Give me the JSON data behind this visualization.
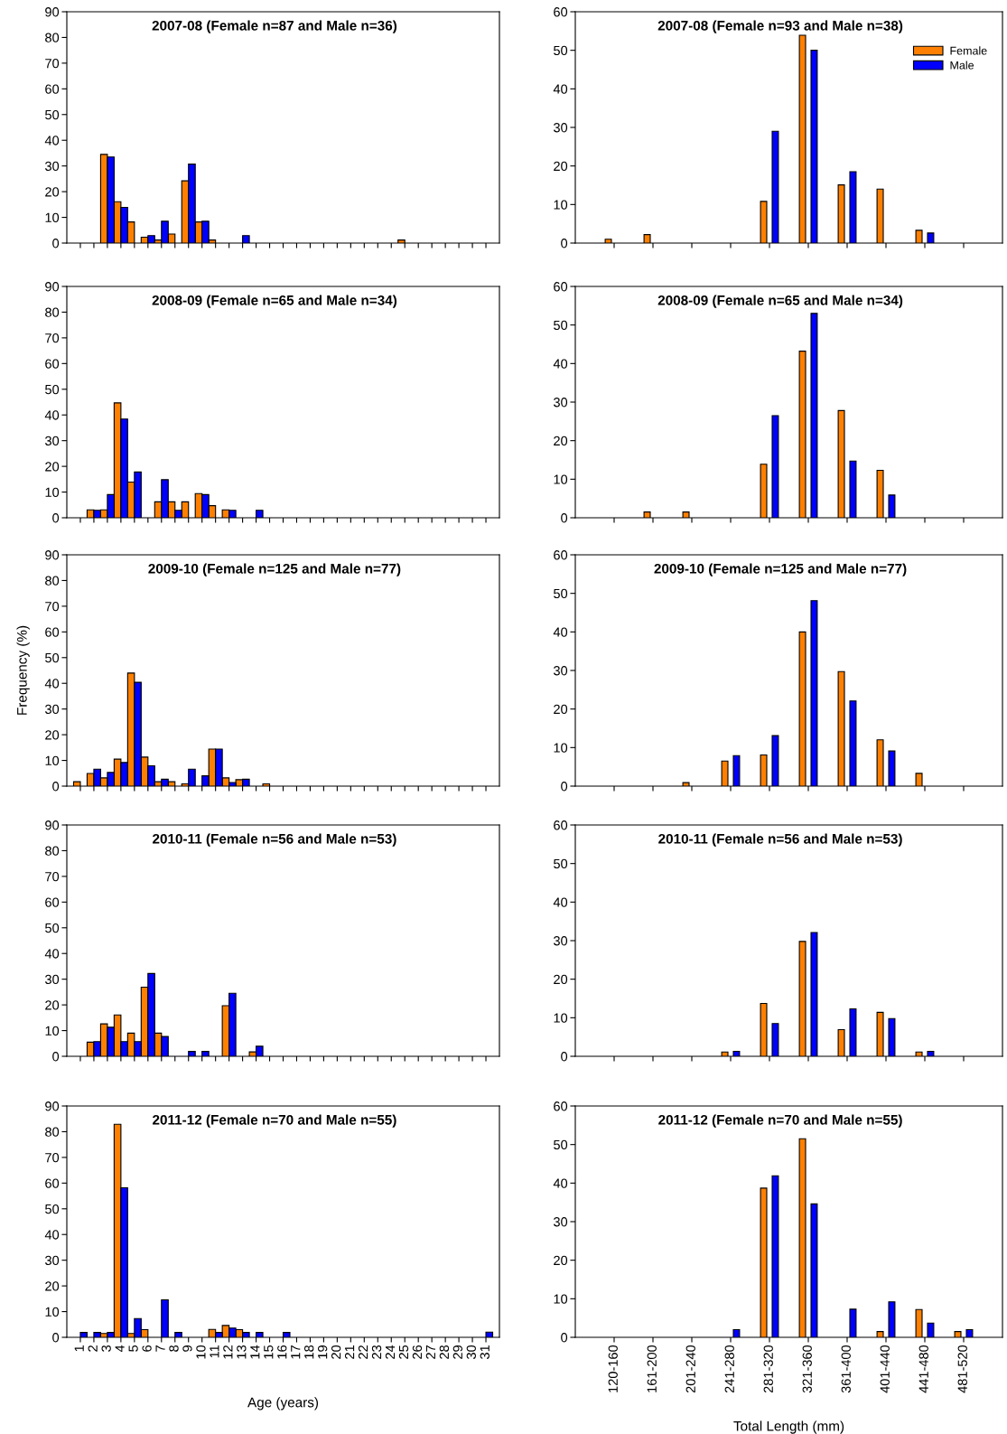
{
  "chart_data": [
    {
      "type": "bar",
      "title": "2007-08 (Female n=87 and Male n=36)",
      "x": [
        1,
        2,
        3,
        4,
        5,
        6,
        7,
        8,
        9,
        10,
        11,
        12,
        13,
        14,
        15,
        16,
        17,
        18,
        19,
        20,
        21,
        22,
        23,
        24,
        25,
        26,
        27,
        28,
        29,
        30,
        31
      ],
      "series": [
        {
          "color": "#ff8000",
          "values": [
            0,
            0,
            34.5,
            16.1,
            8.2,
            2.3,
            1.2,
            3.5,
            24.2,
            8.2,
            1.2,
            0,
            0,
            0,
            0,
            0,
            0,
            0,
            0,
            0,
            0,
            0,
            0,
            0,
            1.2,
            0,
            0,
            0,
            0,
            0,
            0
          ]
        },
        {
          "color": "#0000ff",
          "values": [
            0,
            0,
            33.5,
            13.9,
            0,
            2.9,
            8.5,
            0,
            30.7,
            8.5,
            0,
            0,
            2.9,
            0,
            0,
            0,
            0,
            0,
            0,
            0,
            0,
            0,
            0,
            0,
            0,
            0,
            0,
            0,
            0,
            0,
            0
          ]
        }
      ],
      "xlim": [
        0,
        32
      ],
      "xticks": [
        1,
        2,
        3,
        4,
        5,
        6,
        7,
        8,
        9,
        10,
        11,
        12,
        13,
        14,
        15,
        16,
        17,
        18,
        19,
        20,
        21,
        22,
        23,
        24,
        25,
        26,
        27,
        28,
        29,
        30,
        31
      ],
      "ylim": [
        0,
        90
      ],
      "yticks": [
        0,
        10,
        20,
        30,
        40,
        50,
        60,
        70,
        80,
        90
      ],
      "tick_labels": "y"
    },
    {
      "type": "bar",
      "title": "2007-08 (Female n=93 and Male n=38)",
      "categories": [
        null,
        null,
        null,
        null,
        null,
        null,
        null,
        null,
        null,
        null
      ],
      "series": [
        {
          "name": "Female",
          "color": "#ff8000",
          "values": [
            1.0,
            2.2,
            0,
            0,
            10.8,
            53.9,
            15.1,
            14.0,
            3.3,
            0
          ]
        },
        {
          "name": "Male",
          "color": "#0000ff",
          "values": [
            0,
            0,
            0,
            0,
            29.0,
            50.0,
            18.5,
            0,
            2.6,
            0
          ]
        }
      ],
      "ylim": [
        0,
        60
      ],
      "yticks": [
        0,
        10,
        20,
        30,
        40,
        50,
        60
      ],
      "legend": "top right"
    },
    {
      "type": "bar",
      "title": "2008-09 (Female n=65 and Male n=34)",
      "x": [
        1,
        2,
        3,
        4,
        5,
        6,
        7,
        8,
        9,
        10,
        11,
        12,
        13,
        14,
        15,
        16,
        17,
        18,
        19,
        20,
        21,
        22,
        23,
        24,
        25,
        26,
        27,
        28,
        29,
        30,
        31
      ],
      "series": [
        {
          "color": "#ff8000",
          "values": [
            0,
            3.1,
            3.1,
            44.7,
            13.9,
            0,
            6.2,
            6.2,
            6.2,
            9.4,
            4.7,
            3.1,
            0,
            0,
            0,
            0,
            0,
            0,
            0,
            0,
            0,
            0,
            0,
            0,
            0,
            0,
            0,
            0,
            0,
            0,
            0
          ]
        },
        {
          "color": "#0000ff",
          "values": [
            0,
            2.9,
            9.0,
            38.4,
            17.8,
            0,
            14.8,
            2.9,
            0,
            9.0,
            0,
            2.9,
            0,
            2.9,
            0,
            0,
            0,
            0,
            0,
            0,
            0,
            0,
            0,
            0,
            0,
            0,
            0,
            0,
            0,
            0,
            0
          ]
        }
      ],
      "xlim": [
        0,
        32
      ],
      "xticks": [
        1,
        2,
        3,
        4,
        5,
        6,
        7,
        8,
        9,
        10,
        11,
        12,
        13,
        14,
        15,
        16,
        17,
        18,
        19,
        20,
        21,
        22,
        23,
        24,
        25,
        26,
        27,
        28,
        29,
        30,
        31
      ],
      "ylim": [
        0,
        90
      ],
      "yticks": [
        0,
        10,
        20,
        30,
        40,
        50,
        60,
        70,
        80,
        90
      ],
      "tick_labels": "y"
    },
    {
      "type": "bar",
      "title": "2008-09 (Female n=65 and Male n=34)",
      "categories": [
        null,
        null,
        null,
        null,
        null,
        null,
        null,
        null,
        null,
        null
      ],
      "series": [
        {
          "color": "#ff8000",
          "values": [
            0,
            1.5,
            1.5,
            0,
            13.9,
            43.2,
            27.8,
            12.3,
            0,
            0
          ]
        },
        {
          "color": "#0000ff",
          "values": [
            0,
            0,
            0,
            0,
            26.5,
            53.0,
            14.7,
            5.9,
            0,
            0
          ]
        }
      ],
      "ylim": [
        0,
        60
      ],
      "yticks": [
        0,
        10,
        20,
        30,
        40,
        50,
        60
      ]
    },
    {
      "type": "bar",
      "title": "2009-10 (Female n=125 and Male n=77)",
      "ylabel": "Frequency (%)",
      "x": [
        1,
        2,
        3,
        4,
        5,
        6,
        7,
        8,
        9,
        10,
        11,
        12,
        13,
        14,
        15,
        16,
        17,
        18,
        19,
        20,
        21,
        22,
        23,
        24,
        25,
        26,
        27,
        28,
        29,
        30,
        31
      ],
      "series": [
        {
          "color": "#ff8000",
          "values": [
            1.7,
            4.9,
            3.2,
            10.5,
            44.0,
            11.3,
            1.7,
            1.7,
            0.9,
            0,
            14.4,
            3.2,
            2.5,
            0,
            0.9,
            0,
            0,
            0,
            0,
            0,
            0,
            0,
            0,
            0,
            0,
            0,
            0,
            0,
            0,
            0,
            0
          ]
        },
        {
          "color": "#0000ff",
          "values": [
            0,
            6.6,
            5.3,
            9.2,
            40.4,
            7.9,
            2.7,
            0,
            6.6,
            4.0,
            14.4,
            1.4,
            2.7,
            0,
            0,
            0,
            0,
            0,
            0,
            0,
            0,
            0,
            0,
            0,
            0,
            0,
            0,
            0,
            0,
            0,
            0
          ]
        }
      ],
      "xlim": [
        0,
        32
      ],
      "xticks": [
        1,
        2,
        3,
        4,
        5,
        6,
        7,
        8,
        9,
        10,
        11,
        12,
        13,
        14,
        15,
        16,
        17,
        18,
        19,
        20,
        21,
        22,
        23,
        24,
        25,
        26,
        27,
        28,
        29,
        30,
        31
      ],
      "ylim": [
        0,
        90
      ],
      "yticks": [
        0,
        10,
        20,
        30,
        40,
        50,
        60,
        70,
        80,
        90
      ],
      "tick_labels": "y"
    },
    {
      "type": "bar",
      "title": "2009-10 (Female n=125 and Male n=77)",
      "categories": [
        null,
        null,
        null,
        null,
        null,
        null,
        null,
        null,
        null,
        null
      ],
      "series": [
        {
          "color": "#ff8000",
          "values": [
            0,
            0,
            0.9,
            6.5,
            8.1,
            40.0,
            29.7,
            12.0,
            3.3,
            0
          ]
        },
        {
          "color": "#0000ff",
          "values": [
            0,
            0,
            0,
            7.9,
            13.1,
            48.1,
            22.1,
            9.1,
            0,
            0
          ]
        }
      ],
      "ylim": [
        0,
        60
      ],
      "yticks": [
        0,
        10,
        20,
        30,
        40,
        50,
        60
      ]
    },
    {
      "type": "bar",
      "title": "2010-11 (Female n=56 and Male n=53)",
      "x": [
        1,
        2,
        3,
        4,
        5,
        6,
        7,
        8,
        9,
        10,
        11,
        12,
        13,
        14,
        15,
        16,
        17,
        18,
        19,
        20,
        21,
        22,
        23,
        24,
        25,
        26,
        27,
        28,
        29,
        30,
        31
      ],
      "series": [
        {
          "color": "#ff8000",
          "values": [
            0,
            5.5,
            12.6,
            16.1,
            9.0,
            26.9,
            9.0,
            0,
            0,
            0,
            0,
            19.7,
            0,
            1.7,
            0,
            0,
            0,
            0,
            0,
            0,
            0,
            0,
            0,
            0,
            0,
            0,
            0,
            0,
            0,
            0,
            0
          ]
        },
        {
          "color": "#0000ff",
          "values": [
            0,
            5.7,
            11.3,
            5.7,
            5.7,
            32.2,
            7.7,
            0,
            1.9,
            1.9,
            0,
            24.5,
            0,
            3.9,
            0,
            0,
            0,
            0,
            0,
            0,
            0,
            0,
            0,
            0,
            0,
            0,
            0,
            0,
            0,
            0,
            0
          ]
        }
      ],
      "xlim": [
        0,
        32
      ],
      "xticks": [
        1,
        2,
        3,
        4,
        5,
        6,
        7,
        8,
        9,
        10,
        11,
        12,
        13,
        14,
        15,
        16,
        17,
        18,
        19,
        20,
        21,
        22,
        23,
        24,
        25,
        26,
        27,
        28,
        29,
        30,
        31
      ],
      "ylim": [
        0,
        90
      ],
      "yticks": [
        0,
        10,
        20,
        30,
        40,
        50,
        60,
        70,
        80,
        90
      ],
      "tick_labels": "y"
    },
    {
      "type": "bar",
      "title": "2010-11 (Female n=56 and Male n=53)",
      "categories": [
        null,
        null,
        null,
        null,
        null,
        null,
        null,
        null,
        null,
        null
      ],
      "series": [
        {
          "color": "#ff8000",
          "values": [
            0,
            0,
            0,
            1.1,
            13.7,
            29.8,
            6.9,
            11.4,
            1.1,
            0
          ]
        },
        {
          "color": "#0000ff",
          "values": [
            0,
            0,
            0,
            1.3,
            8.5,
            32.1,
            12.3,
            9.8,
            1.3,
            0
          ]
        }
      ],
      "ylim": [
        0,
        60
      ],
      "yticks": [
        0,
        10,
        20,
        30,
        40,
        50,
        60
      ]
    },
    {
      "type": "bar",
      "title": "2011-12 (Female n=70 and Male n=55)",
      "xlabel": "Age (years)",
      "x": [
        1,
        2,
        3,
        4,
        5,
        6,
        7,
        8,
        9,
        10,
        11,
        12,
        13,
        14,
        15,
        16,
        17,
        18,
        19,
        20,
        21,
        22,
        23,
        24,
        25,
        26,
        27,
        28,
        29,
        30,
        31
      ],
      "series": [
        {
          "color": "#ff8000",
          "values": [
            0,
            0,
            1.5,
            82.9,
            1.5,
            3.0,
            0,
            0,
            0,
            0,
            3.1,
            4.6,
            3.0,
            0,
            0,
            0,
            0,
            0,
            0,
            0,
            0,
            0,
            0,
            0,
            0,
            0,
            0,
            0,
            0,
            0,
            0
          ]
        },
        {
          "color": "#0000ff",
          "values": [
            1.9,
            1.9,
            1.9,
            58.2,
            7.3,
            0,
            14.6,
            1.9,
            0,
            0,
            1.9,
            3.6,
            1.9,
            1.9,
            0,
            1.9,
            0,
            0,
            0,
            0,
            0,
            0,
            0,
            0,
            0,
            0,
            0,
            0,
            0,
            0,
            2.0
          ]
        }
      ],
      "xlim": [
        0,
        32
      ],
      "xticks": [
        1,
        2,
        3,
        4,
        5,
        6,
        7,
        8,
        9,
        10,
        11,
        12,
        13,
        14,
        15,
        16,
        17,
        18,
        19,
        20,
        21,
        22,
        23,
        24,
        25,
        26,
        27,
        28,
        29,
        30,
        31
      ],
      "ylim": [
        0,
        90
      ],
      "yticks": [
        0,
        10,
        20,
        30,
        40,
        50,
        60,
        70,
        80,
        90
      ]
    },
    {
      "type": "bar",
      "title": "2011-12 (Female n=70 and Male n=55)",
      "xlabel": "Total Length (mm)",
      "categories": [
        "120-160",
        "161-200",
        "201-240",
        "241-280",
        "281-320",
        "321-360",
        "361-400",
        "401-440",
        "441-480",
        "481-520"
      ],
      "series": [
        {
          "color": "#ff8000",
          "values": [
            0,
            0,
            0,
            0,
            38.7,
            51.5,
            0,
            1.5,
            7.2,
            1.5
          ]
        },
        {
          "color": "#0000ff",
          "values": [
            0,
            0,
            0,
            2.0,
            41.9,
            34.6,
            7.3,
            9.2,
            3.7,
            2.0
          ]
        }
      ],
      "ylim": [
        0,
        60
      ],
      "yticks": [
        0,
        10,
        20,
        30,
        40,
        50,
        60
      ]
    }
  ]
}
